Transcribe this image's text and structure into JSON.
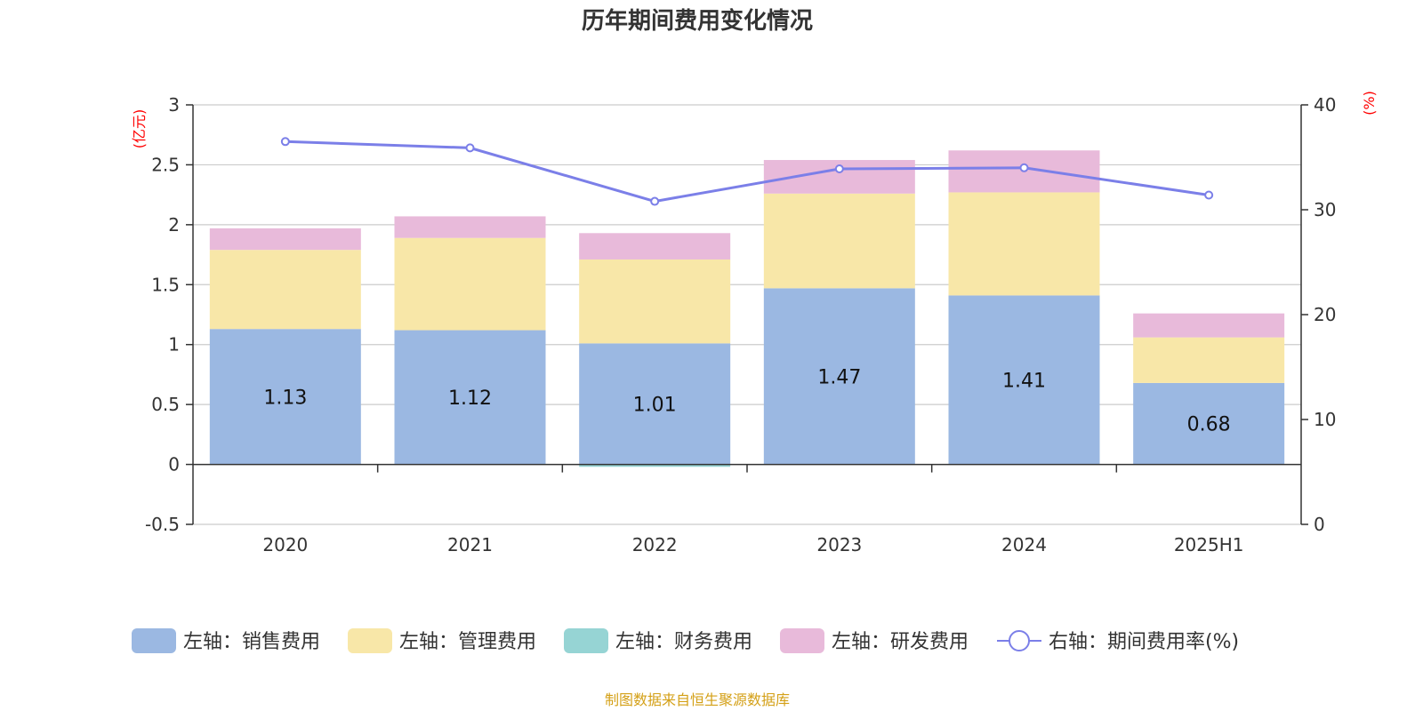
{
  "chart_data": {
    "type": "bar",
    "title": "历年期间费用变化情况",
    "categories": [
      "2020",
      "2021",
      "2022",
      "2023",
      "2024",
      "2025H1"
    ],
    "series": [
      {
        "name": "左轴：销售费用",
        "axis": "left",
        "type": "bar",
        "color": "#9bb8e2",
        "values": [
          1.13,
          1.12,
          1.01,
          1.47,
          1.41,
          0.68
        ]
      },
      {
        "name": "左轴：管理费用",
        "axis": "left",
        "type": "bar",
        "color": "#f8e7a8",
        "values": [
          0.66,
          0.77,
          0.7,
          0.79,
          0.86,
          0.38
        ]
      },
      {
        "name": "左轴：财务费用",
        "axis": "left",
        "type": "bar",
        "color": "#96d4d4",
        "values": [
          0.0,
          0.0,
          -0.02,
          0.0,
          0.0,
          0.0
        ]
      },
      {
        "name": "左轴：研发费用",
        "axis": "left",
        "type": "bar",
        "color": "#e8bada",
        "values": [
          0.18,
          0.18,
          0.22,
          0.28,
          0.35,
          0.2
        ]
      },
      {
        "name": "右轴：期间费用率(%)",
        "axis": "right",
        "type": "line",
        "color": "#7b7fe8",
        "values": [
          36.5,
          35.9,
          30.8,
          33.9,
          34.0,
          31.4
        ]
      }
    ],
    "data_labels": [
      "1.13",
      "1.12",
      "1.01",
      "1.47",
      "1.41",
      "0.68"
    ],
    "left_axis": {
      "unit": "(亿元)",
      "ylim": [
        -0.5,
        3
      ],
      "ticks": [
        "-0.5",
        "0",
        "0.5",
        "1",
        "1.5",
        "2",
        "2.5",
        "3"
      ],
      "tick_values": [
        -0.5,
        0,
        0.5,
        1,
        1.5,
        2,
        2.5,
        3
      ]
    },
    "right_axis": {
      "unit": "(%)",
      "ylim": [
        0,
        40
      ],
      "ticks": [
        "0",
        "10",
        "20",
        "30",
        "40"
      ],
      "tick_values": [
        0,
        10,
        20,
        30,
        40
      ]
    },
    "grid": true,
    "legend_position": "bottom",
    "unit_color": "#ff0000"
  },
  "source": "制图数据来自恒生聚源数据库",
  "source_color": "#d4a017"
}
